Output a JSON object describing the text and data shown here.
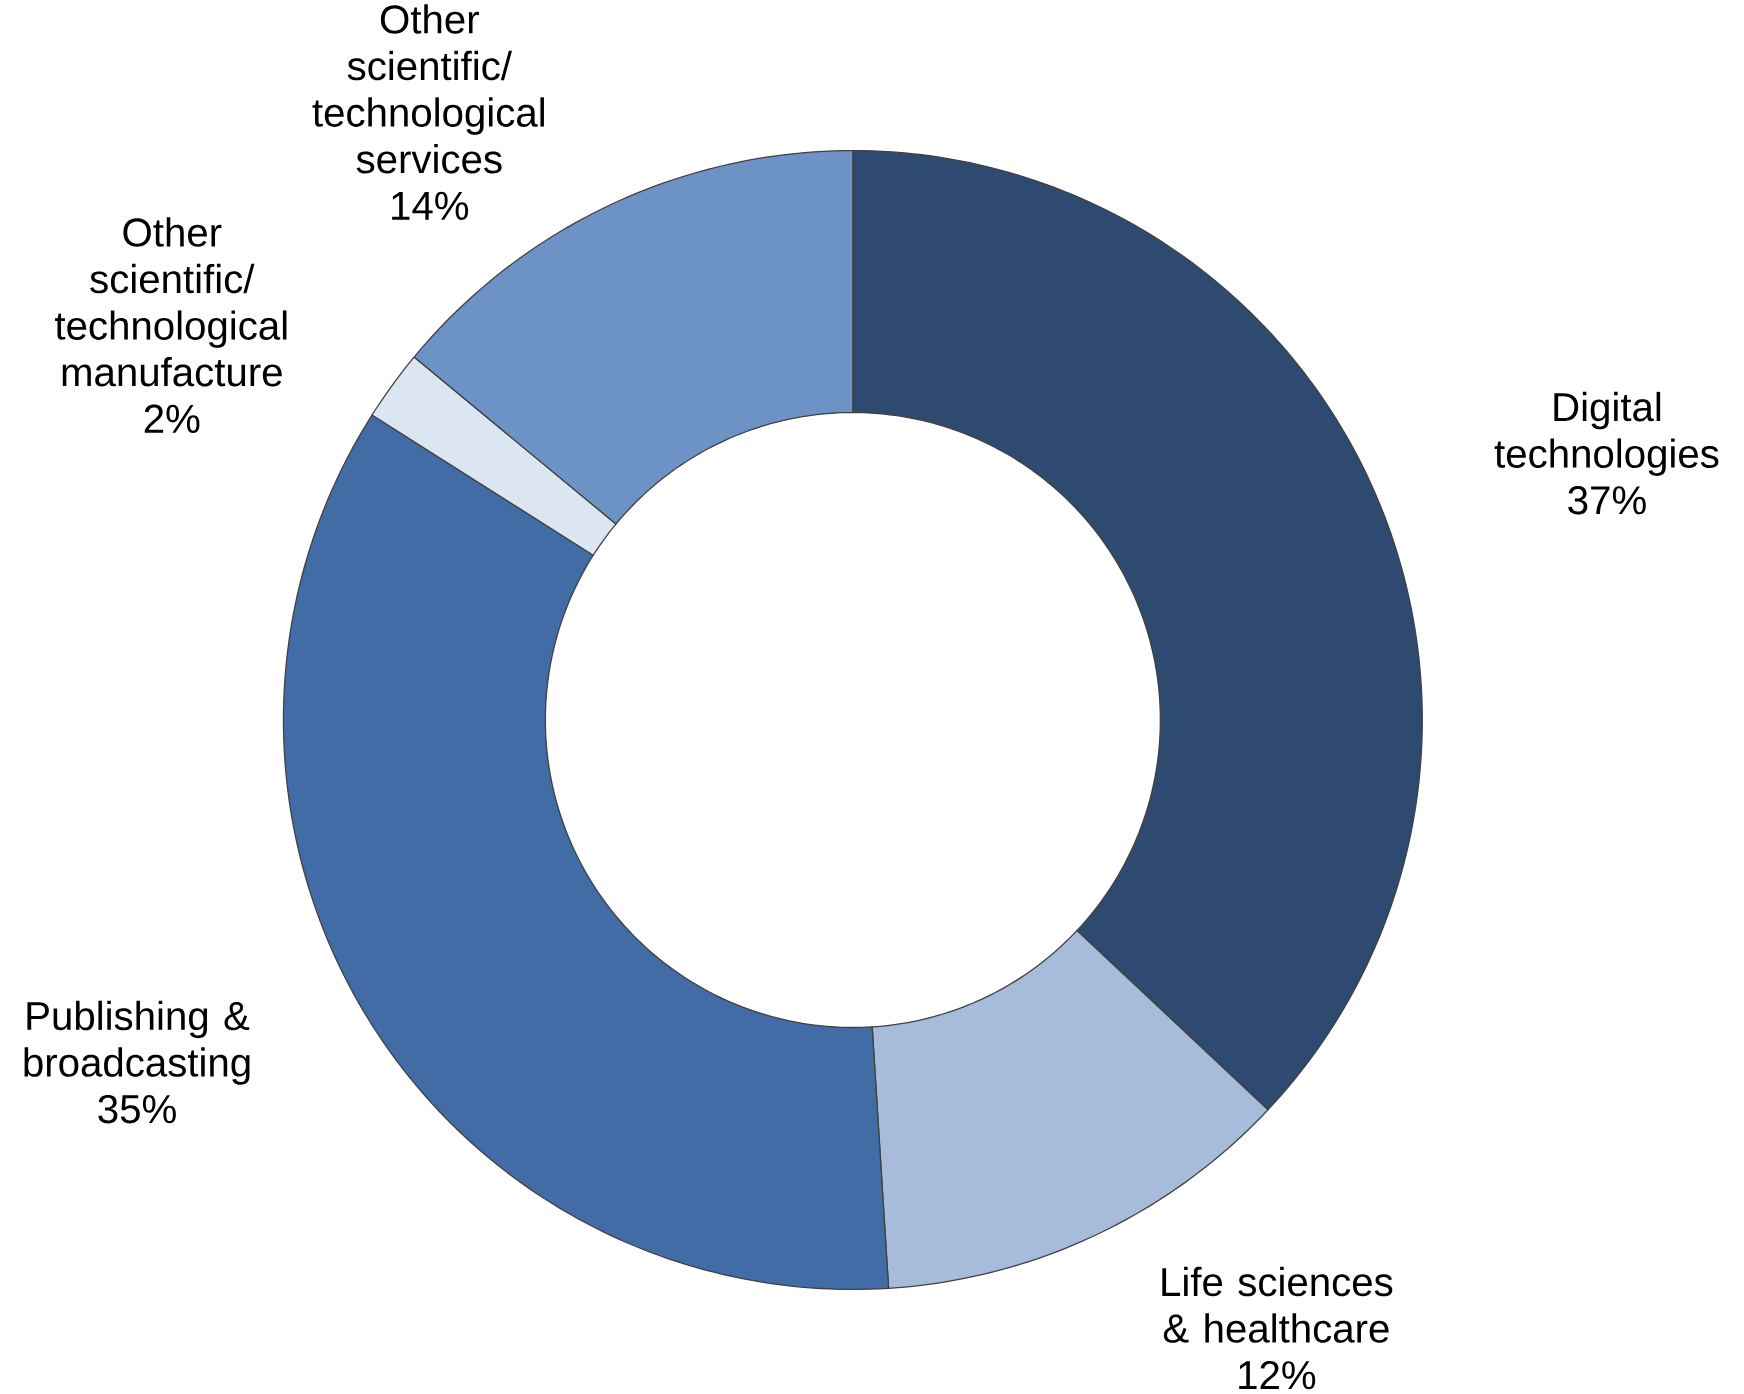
{
  "chart_data": {
    "type": "donut",
    "categories": [
      "Digital technologies",
      "Life sciences & healthcare",
      "Publishing & broadcasting",
      "Other scientific/ technological manufacture",
      "Other scientific/ technological services"
    ],
    "values": [
      37,
      12,
      35,
      2,
      14
    ],
    "value_labels": [
      "37%",
      "12%",
      "35%",
      "2%",
      "14%"
    ],
    "colors": [
      "#2e4a70",
      "#a7bcdb",
      "#416ca6",
      "#dce6f2",
      "#6d93c6"
    ]
  }
}
